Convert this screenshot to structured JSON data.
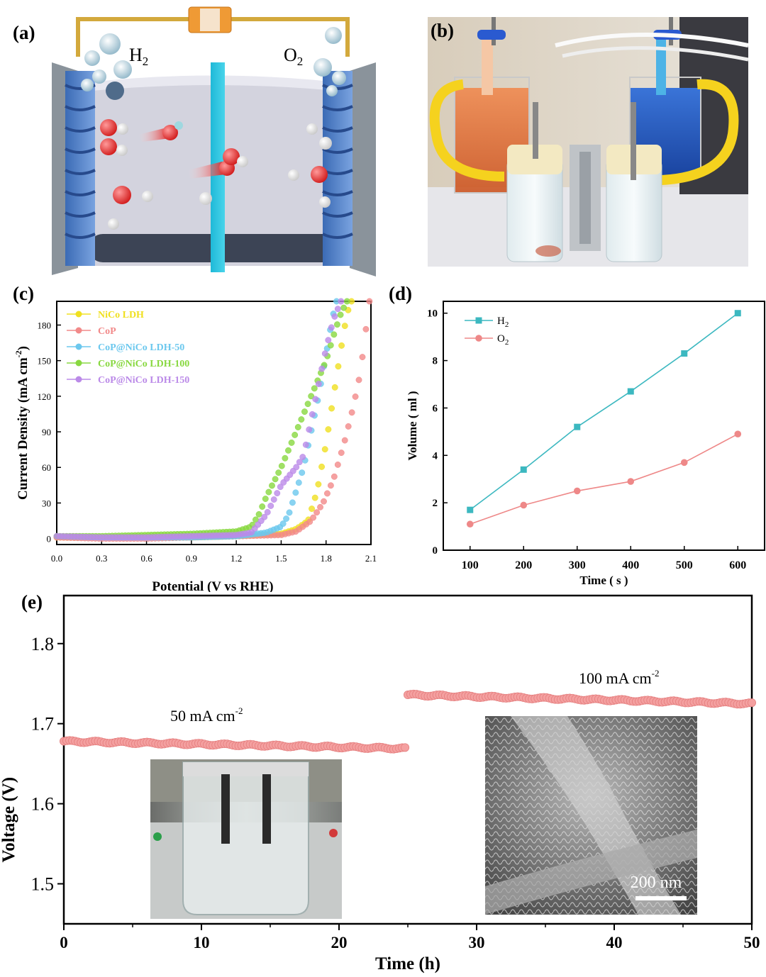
{
  "panels": {
    "a": {
      "label": "(a)",
      "gas_left": "H",
      "gas_left_sub": "2",
      "gas_right": "O",
      "gas_right_sub": "2"
    },
    "b": {
      "label": "(b)"
    },
    "c": {
      "label": "(c)"
    },
    "d": {
      "label": "(d)"
    },
    "e": {
      "label": "(e)",
      "annot_50": "50 mA cm",
      "annot_100": "100 mA cm",
      "annot_sup": "-2",
      "scale_bar": "200 nm"
    }
  },
  "colors": {
    "nico": "#f0e020",
    "cop": "#f28a8a",
    "cop50": "#6cc8ee",
    "cop100": "#88d840",
    "cop150": "#bb8ae8",
    "h2": "#3cb8c0",
    "o2": "#ee8888",
    "stability": "#f4a0a0"
  },
  "chart_data": [
    {
      "panel": "c",
      "type": "line",
      "xlabel": "Potential (V vs RHE)",
      "ylabel": "Current Density (mA cm",
      "ylabel_sup": "-2",
      "ylabel_end": ")",
      "xlim": [
        0.0,
        2.1
      ],
      "ylim": [
        -5,
        200
      ],
      "xticks": [
        0.0,
        0.3,
        0.6,
        0.9,
        1.2,
        1.5,
        1.8,
        2.1
      ],
      "xtick_labels": [
        "0.0",
        "0.3",
        "0.6",
        "0.9",
        "1.2",
        "1.5",
        "1.8",
        "2.1"
      ],
      "yticks": [
        0,
        30,
        60,
        90,
        120,
        150,
        180
      ],
      "ytick_labels": [
        "0",
        "30",
        "60",
        "90",
        "120",
        "150",
        "180"
      ],
      "legend_position": "top-left",
      "series": [
        {
          "name": "NiCo LDH",
          "colorKey": "nico",
          "x": [
            0.0,
            0.3,
            0.6,
            0.9,
            1.2,
            1.5,
            1.6,
            1.68,
            1.74,
            1.8,
            1.85,
            1.9,
            1.94,
            1.97
          ],
          "y": [
            1,
            1,
            1,
            1,
            2,
            4,
            8,
            15,
            40,
            80,
            120,
            160,
            190,
            200
          ]
        },
        {
          "name": "CoP",
          "colorKey": "cop",
          "x": [
            0.0,
            0.3,
            0.6,
            0.9,
            1.2,
            1.5,
            1.6,
            1.7,
            1.78,
            1.85,
            1.92,
            1.98,
            2.03,
            2.07,
            2.09
          ],
          "y": [
            1,
            0,
            0,
            1,
            2,
            3,
            6,
            15,
            30,
            50,
            80,
            110,
            140,
            180,
            200
          ]
        },
        {
          "name": "CoP@NiCo LDH-50",
          "colorKey": "cop50",
          "x": [
            0.0,
            0.3,
            0.6,
            0.9,
            1.2,
            1.4,
            1.5,
            1.55,
            1.6,
            1.65,
            1.7,
            1.75,
            1.8,
            1.84,
            1.87
          ],
          "y": [
            2,
            1,
            1,
            1,
            2,
            5,
            10,
            20,
            40,
            60,
            90,
            120,
            155,
            185,
            200
          ]
        },
        {
          "name": "CoP@NiCo LDH-100",
          "colorKey": "cop100",
          "x": [
            0.0,
            0.3,
            0.6,
            0.9,
            1.2,
            1.3,
            1.35,
            1.4,
            1.5,
            1.6,
            1.7,
            1.8,
            1.86,
            1.9,
            1.94
          ],
          "y": [
            2,
            2,
            3,
            4,
            6,
            10,
            20,
            35,
            60,
            90,
            120,
            150,
            175,
            190,
            200
          ]
        },
        {
          "name": "CoP@NiCo LDH-150",
          "colorKey": "cop150",
          "x": [
            0.0,
            0.3,
            0.6,
            0.9,
            1.2,
            1.3,
            1.4,
            1.5,
            1.6,
            1.65,
            1.7,
            1.75,
            1.8,
            1.85,
            1.9
          ],
          "y": [
            2,
            1,
            1,
            2,
            3,
            5,
            20,
            45,
            60,
            70,
            100,
            130,
            160,
            185,
            200
          ]
        }
      ]
    },
    {
      "panel": "d",
      "type": "line",
      "xlabel": "Time ( s )",
      "ylabel": "Volume ( ml )",
      "xlim": [
        50,
        650
      ],
      "ylim": [
        0,
        10.5
      ],
      "xticks": [
        100,
        200,
        300,
        400,
        500,
        600
      ],
      "yticks": [
        0,
        2,
        4,
        6,
        8,
        10
      ],
      "legend_position": "top-left",
      "series": [
        {
          "name": "H",
          "name_sub": "2",
          "colorKey": "h2",
          "marker": "square",
          "x": [
            100,
            200,
            300,
            400,
            500,
            600
          ],
          "y": [
            1.7,
            3.4,
            5.2,
            6.7,
            8.3,
            10.0
          ]
        },
        {
          "name": "O",
          "name_sub": "2",
          "colorKey": "o2",
          "marker": "circle",
          "x": [
            100,
            200,
            300,
            400,
            500,
            600
          ],
          "y": [
            1.1,
            1.9,
            2.5,
            2.9,
            3.7,
            4.9
          ]
        }
      ]
    },
    {
      "panel": "e",
      "type": "scatter",
      "xlabel": "Time (h)",
      "ylabel": "Voltage (V)",
      "xlim": [
        0,
        50
      ],
      "ylim": [
        1.45,
        1.86
      ],
      "xticks": [
        0,
        10,
        20,
        30,
        40,
        50
      ],
      "yticks": [
        1.5,
        1.6,
        1.7,
        1.8
      ],
      "ytick_labels": [
        "1.5",
        "1.6",
        "1.7",
        "1.8"
      ],
      "series": [
        {
          "name": "",
          "colorKey": "stability",
          "segments": [
            {
              "x_start": 0,
              "x_end": 24.8,
              "y_start": 1.678,
              "y_end": 1.669
            },
            {
              "x_start": 25.0,
              "x_end": 50,
              "y_start": 1.736,
              "y_end": 1.725
            }
          ]
        }
      ]
    }
  ]
}
